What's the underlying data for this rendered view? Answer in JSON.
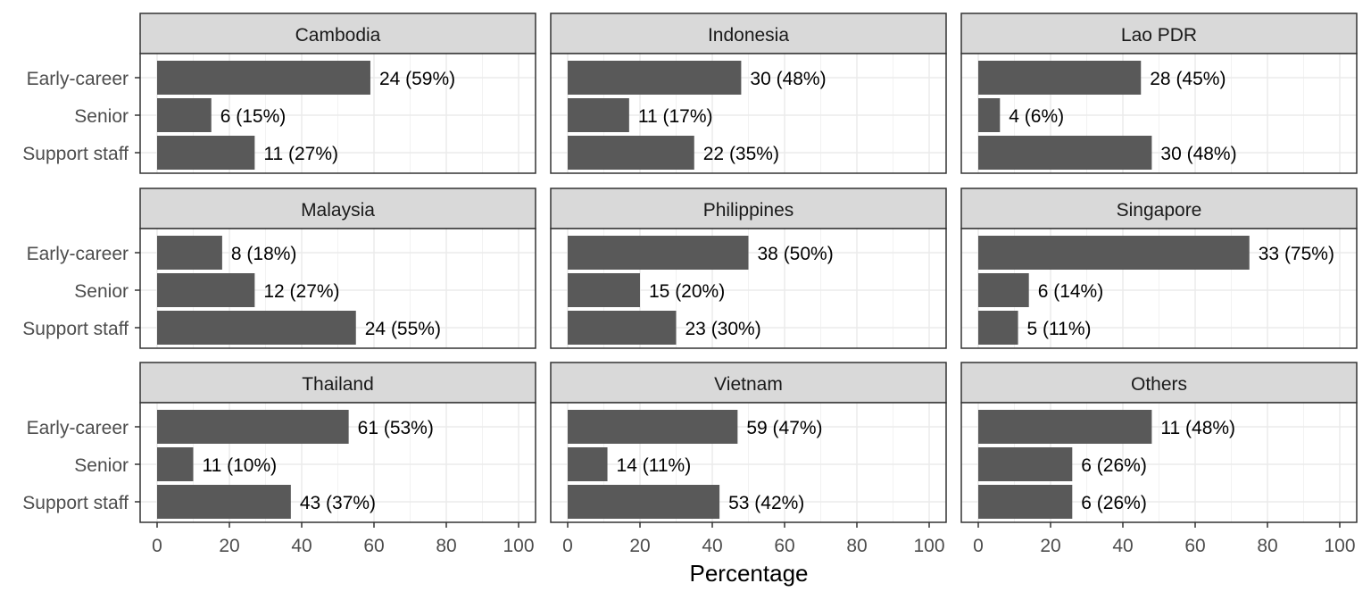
{
  "chart_data": {
    "type": "bar",
    "orientation": "horizontal",
    "facet_layout": "3x3 grid",
    "xlabel": "Percentage",
    "ylabel": "",
    "xlim": [
      0,
      100
    ],
    "x_ticks": [
      "0",
      "20",
      "40",
      "60",
      "80",
      "100"
    ],
    "grid": true,
    "categories": [
      "Early-career",
      "Senior",
      "Support staff"
    ],
    "colors": {
      "bar": "#595959",
      "strip_bg": "#d9d9d9",
      "panel_border": "#333333",
      "grid": "#ebebeb"
    },
    "panels": [
      {
        "title": "Cambodia",
        "values": [
          59,
          15,
          27
        ],
        "labels": [
          "24 (59%)",
          "6 (15%)",
          "11 (27%)"
        ]
      },
      {
        "title": "Indonesia",
        "values": [
          48,
          17,
          35
        ],
        "labels": [
          "30 (48%)",
          "11 (17%)",
          "22 (35%)"
        ]
      },
      {
        "title": "Lao PDR",
        "values": [
          45,
          6,
          48
        ],
        "labels": [
          "28 (45%)",
          "4 (6%)",
          "30 (48%)"
        ]
      },
      {
        "title": "Malaysia",
        "values": [
          18,
          27,
          55
        ],
        "labels": [
          "8 (18%)",
          "12 (27%)",
          "24 (55%)"
        ]
      },
      {
        "title": "Philippines",
        "values": [
          50,
          20,
          30
        ],
        "labels": [
          "38 (50%)",
          "15 (20%)",
          "23 (30%)"
        ]
      },
      {
        "title": "Singapore",
        "values": [
          75,
          14,
          11
        ],
        "labels": [
          "33 (75%)",
          "6 (14%)",
          "5 (11%)"
        ]
      },
      {
        "title": "Thailand",
        "values": [
          53,
          10,
          37
        ],
        "labels": [
          "61 (53%)",
          "11 (10%)",
          "43 (37%)"
        ]
      },
      {
        "title": "Vietnam",
        "values": [
          47,
          11,
          42
        ],
        "labels": [
          "59 (47%)",
          "14 (11%)",
          "53 (42%)"
        ]
      },
      {
        "title": "Others",
        "values": [
          48,
          26,
          26
        ],
        "labels": [
          "11 (48%)",
          "6 (26%)",
          "6 (26%)"
        ]
      }
    ]
  }
}
